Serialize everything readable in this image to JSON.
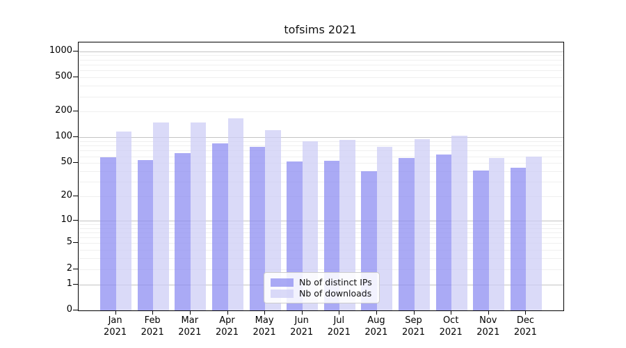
{
  "title": "tofsims 2021",
  "chart_data": {
    "type": "bar",
    "title": "tofsims 2021",
    "categories": [
      "Jan 2021",
      "Feb 2021",
      "Mar 2021",
      "Apr 2021",
      "May 2021",
      "Jun 2021",
      "Jul 2021",
      "Aug 2021",
      "Sep 2021",
      "Oct 2021",
      "Nov 2021",
      "Dec 2021"
    ],
    "series": [
      {
        "name": "Nb of distinct IPs",
        "color": "rgba(141,141,242,0.75)",
        "solid_hex": "#ababf5",
        "values": [
          58,
          54,
          65,
          85,
          77,
          52,
          53,
          40,
          57,
          63,
          41,
          44
        ]
      },
      {
        "name": "Nb of downloads",
        "color": "rgba(205,205,246,0.75)",
        "solid_hex": "#d9d9f8",
        "values": [
          116,
          150,
          150,
          166,
          121,
          90,
          93,
          78,
          95,
          104,
          57,
          60
        ]
      }
    ],
    "xlabel": "",
    "ylabel": "",
    "y_ticks": [
      0,
      1,
      2,
      5,
      10,
      20,
      50,
      100,
      200,
      500,
      1000
    ],
    "y_scale": "log(1+x)",
    "ylim": [
      0,
      1100
    ],
    "grid": "horizontal, minor faint + decade lines darker",
    "legend_position": "lower center inside plot",
    "grid_minor_color": "#efefef",
    "grid_major_color": "#c3c3c3",
    "axis_color": "#000000"
  }
}
